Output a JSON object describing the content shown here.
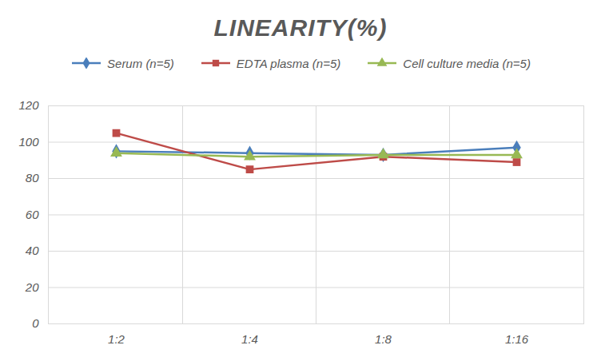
{
  "chart_data": {
    "type": "line",
    "title": "LINEARITY(%)",
    "categories": [
      "1:2",
      "1:4",
      "1:8",
      "1:16"
    ],
    "series": [
      {
        "name": "Serum (n=5)",
        "color": "#4a7ebb",
        "marker": "diamond",
        "values": [
          95,
          94,
          93,
          97
        ]
      },
      {
        "name": "EDTA plasma (n=5)",
        "color": "#be4b48",
        "marker": "square",
        "values": [
          105,
          85,
          92,
          89
        ]
      },
      {
        "name": "Cell culture media (n=5)",
        "color": "#98b954",
        "marker": "triangle",
        "values": [
          94,
          92,
          93,
          93
        ]
      }
    ],
    "ylim": [
      0,
      120
    ],
    "yticks": [
      0,
      20,
      40,
      60,
      80,
      100,
      120
    ],
    "grid": true,
    "legend": "top"
  }
}
